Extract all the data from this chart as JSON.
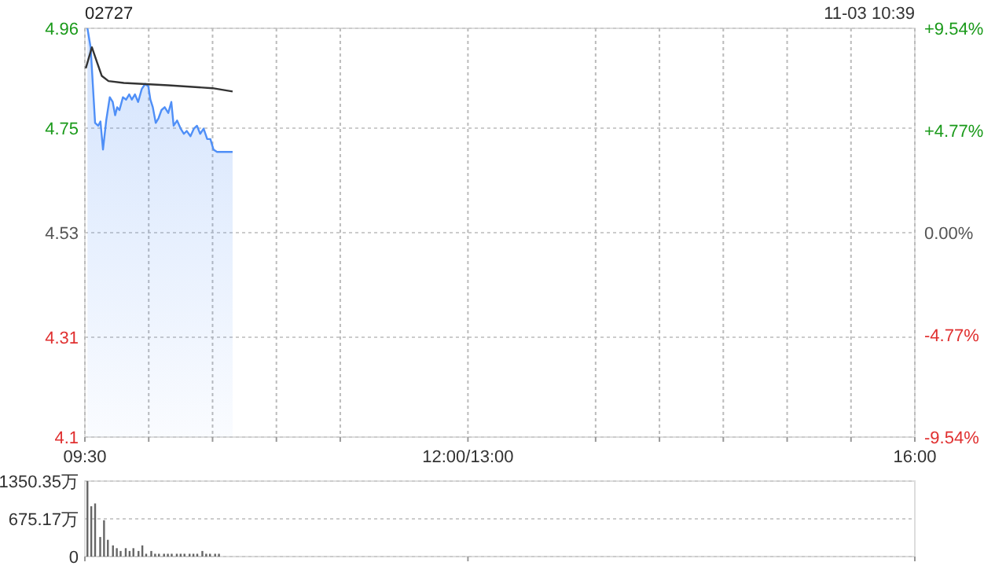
{
  "chart_data": [
    {
      "type": "line",
      "title": "02727",
      "annotations": [
        "11-03 10:39"
      ],
      "xlim": [
        9.5,
        16
      ],
      "xticks": [
        {
          "value": 9.5,
          "label": "09:30"
        },
        {
          "value": 10,
          "label": null
        },
        {
          "value": 10.5,
          "label": null
        },
        {
          "value": 11,
          "label": null
        },
        {
          "value": 11.5,
          "label": null
        },
        {
          "value": 12.5,
          "label": "12:00/13:00"
        },
        {
          "value": 13.5,
          "label": null
        },
        {
          "value": 14,
          "label": null
        },
        {
          "value": 14.5,
          "label": null
        },
        {
          "value": 15,
          "label": null
        },
        {
          "value": 15.5,
          "label": null
        },
        {
          "value": 16,
          "label": "16:00"
        }
      ],
      "ylim": [
        4.1,
        4.96
      ],
      "yticks": [
        4.1,
        4.31,
        4.53,
        4.75,
        4.96
      ],
      "y2lim": [
        -9.54,
        9.54
      ],
      "y2ticks": [
        {
          "value": -9.54,
          "label": "-9.54%"
        },
        {
          "value": -4.77,
          "label": "-4.77%"
        },
        {
          "value": 0,
          "label": "0.00%"
        },
        {
          "value": 4.77,
          "label": "+4.77%"
        },
        {
          "value": 9.54,
          "label": "+9.54%"
        }
      ],
      "grid": true,
      "series": [
        {
          "type": "area",
          "color": "#4f8ff7",
          "x": [
            9.52,
            9.545,
            9.58,
            9.604,
            9.622,
            9.642,
            9.667,
            9.695,
            9.718,
            9.737,
            9.753,
            9.771,
            9.798,
            9.823,
            9.847,
            9.868,
            9.892,
            9.917,
            9.945,
            9.972,
            9.997,
            10.013,
            10.032,
            10.055,
            10.077,
            10.1,
            10.125,
            10.153,
            10.177,
            10.195,
            10.222,
            10.25,
            10.275,
            10.298,
            10.327,
            10.354,
            10.378,
            10.403,
            10.43,
            10.458,
            10.483,
            10.507,
            10.535,
            10.657
          ],
          "values": [
            4.96,
            4.92,
            4.761,
            4.755,
            4.764,
            4.705,
            4.766,
            4.815,
            4.805,
            4.777,
            4.794,
            4.788,
            4.815,
            4.81,
            4.821,
            4.81,
            4.821,
            4.805,
            4.832,
            4.843,
            4.838,
            4.81,
            4.794,
            4.761,
            4.771,
            4.788,
            4.794,
            4.782,
            4.805,
            4.755,
            4.766,
            4.749,
            4.738,
            4.744,
            4.733,
            4.749,
            4.755,
            4.738,
            4.749,
            4.727,
            4.727,
            4.705,
            4.7,
            4.7
          ]
        },
        {
          "color": "#333333",
          "x": [
            9.507,
            9.555,
            9.597,
            9.632,
            9.685,
            9.805,
            10.153,
            10.5,
            10.657
          ],
          "values": [
            4.876,
            4.92,
            4.887,
            4.86,
            4.849,
            4.845,
            4.84,
            4.834,
            4.827
          ]
        }
      ]
    },
    {
      "type": "bar",
      "tick_labels": "y",
      "xlim": [
        9.5,
        16
      ],
      "xticks": [
        {
          "value": 9.5,
          "label": null
        },
        {
          "value": 12.5,
          "label": null
        },
        {
          "value": 16,
          "label": null
        }
      ],
      "ylim": [
        0,
        1350.35
      ],
      "yticks": [
        0,
        {
          "value": 675.17,
          "label": "675.17万"
        },
        {
          "value": 1350.35,
          "label": "1350.35万"
        }
      ],
      "grid": "y",
      "series": [
        {
          "color": "#666666",
          "x": [
            9.52,
            9.55,
            9.58,
            9.62,
            9.65,
            9.68,
            9.72,
            9.75,
            9.78,
            9.82,
            9.85,
            9.88,
            9.92,
            9.95,
            9.98,
            10.02,
            10.05,
            10.08,
            10.12,
            10.15,
            10.18,
            10.22,
            10.25,
            10.28,
            10.32,
            10.35,
            10.38,
            10.42,
            10.45,
            10.48,
            10.52,
            10.55
          ],
          "values": [
            1350,
            900,
            950,
            350,
            650,
            300,
            200,
            150,
            100,
            150,
            100,
            150,
            100,
            200,
            50,
            100,
            50,
            50,
            50,
            50,
            50,
            50,
            50,
            50,
            50,
            50,
            50,
            100,
            50,
            50,
            50,
            50
          ]
        }
      ]
    }
  ]
}
